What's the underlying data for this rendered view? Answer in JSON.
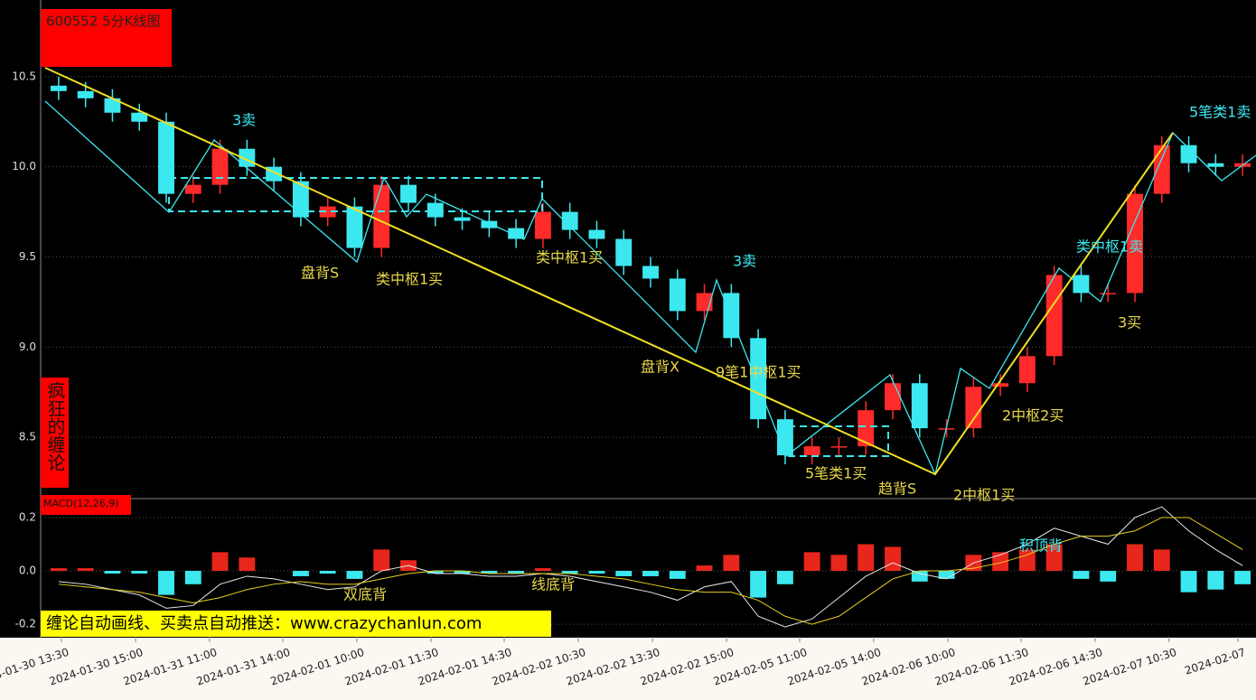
{
  "chart_data": [
    {
      "type": "candlestick",
      "title": "600552 5分K线图",
      "side_label": "疯狂的缠论",
      "banner": "缠论自动画线、买卖点自动推送：www.crazychanlun.com",
      "up_color": "#ff2a2a",
      "down_color": "#3ce8f0",
      "open": [
        10.45,
        10.42,
        10.38,
        10.3,
        10.25,
        9.85,
        9.9,
        10.1,
        10.0,
        9.92,
        9.72,
        9.78,
        9.55,
        9.9,
        9.8,
        9.72,
        9.7,
        9.66,
        9.6,
        9.75,
        9.65,
        9.6,
        9.45,
        9.38,
        9.2,
        9.3,
        9.05,
        8.6,
        8.4,
        8.45,
        8.45,
        8.65,
        8.8,
        8.55,
        8.55,
        8.78,
        8.8,
        8.95,
        9.4,
        9.3,
        9.3,
        9.85,
        10.12,
        10.02,
        10.0
      ],
      "high": [
        10.5,
        10.47,
        10.43,
        10.35,
        10.3,
        9.95,
        10.15,
        10.15,
        10.05,
        9.97,
        9.83,
        9.83,
        9.95,
        9.95,
        9.85,
        9.77,
        9.75,
        9.71,
        9.8,
        9.8,
        9.7,
        9.65,
        9.5,
        9.43,
        9.35,
        9.35,
        9.1,
        8.65,
        8.5,
        8.5,
        8.7,
        8.85,
        8.85,
        8.6,
        8.83,
        8.85,
        9.0,
        9.45,
        9.45,
        9.35,
        9.9,
        10.17,
        10.17,
        10.07,
        10.07
      ],
      "low": [
        10.37,
        10.33,
        10.25,
        10.2,
        9.8,
        9.8,
        9.85,
        9.95,
        9.87,
        9.67,
        9.67,
        9.5,
        9.5,
        9.75,
        9.67,
        9.65,
        9.61,
        9.55,
        9.55,
        9.6,
        9.55,
        9.4,
        9.33,
        9.15,
        9.15,
        9.0,
        8.55,
        8.35,
        8.35,
        8.4,
        8.4,
        8.6,
        8.5,
        8.5,
        8.5,
        8.73,
        8.75,
        8.9,
        9.25,
        9.25,
        9.25,
        9.8,
        9.97,
        9.95,
        9.95
      ],
      "close": [
        10.42,
        10.38,
        10.3,
        10.25,
        9.85,
        9.9,
        10.1,
        10.0,
        9.92,
        9.72,
        9.78,
        9.55,
        9.9,
        9.8,
        9.72,
        9.7,
        9.66,
        9.6,
        9.75,
        9.65,
        9.6,
        9.45,
        9.38,
        9.2,
        9.3,
        9.05,
        8.6,
        8.4,
        8.45,
        8.45,
        8.65,
        8.8,
        8.55,
        8.55,
        8.78,
        8.8,
        8.95,
        9.4,
        9.3,
        9.3,
        9.85,
        10.12,
        10.02,
        10.0,
        10.02
      ],
      "ylim": [
        8.17,
        10.925
      ],
      "yticks": [
        {
          "value": 8.5,
          "label": "8.5"
        },
        {
          "value": 9,
          "label": "9.0"
        },
        9.5,
        {
          "value": 10,
          "label": "10.0"
        },
        10.5
      ],
      "xlim": [
        0,
        45
      ],
      "xticks": [
        {
          "value": 0.6,
          "label": "2024-01-30 13:30"
        },
        {
          "value": 3.36,
          "label": "2024-01-30 15:00"
        },
        {
          "value": 6.11,
          "label": "2024-01-31 11:00"
        },
        {
          "value": 8.83,
          "label": "2024-01-31 14:00"
        },
        {
          "value": 11.58,
          "label": "2024-02-01 10:00"
        },
        {
          "value": 14.34,
          "label": "2024-02-01 11:30"
        },
        {
          "value": 17.06,
          "label": "2024-02-01 14:30"
        },
        {
          "value": 19.81,
          "label": "2024-02-02 10:30"
        },
        {
          "value": 22.57,
          "label": "2024-02-02 13:30"
        },
        {
          "value": 25.32,
          "label": "2024-02-02 15:00"
        },
        {
          "value": 28.04,
          "label": "2024-02-05 11:00"
        },
        {
          "value": 30.79,
          "label": "2024-02-05 14:00"
        },
        {
          "value": 33.55,
          "label": "2024-02-06 10:00"
        },
        {
          "value": 36.27,
          "label": "2024-02-06 11:30"
        },
        {
          "value": 39.02,
          "label": "2024-02-06 14:30"
        },
        {
          "value": 41.77,
          "label": "2024-02-07 10:30"
        },
        {
          "value": 44.33,
          "label": "2024-02-07"
        }
      ],
      "grid": true,
      "annotations": [
        "3卖",
        "盘背S",
        "类中枢1买",
        "类中枢1买",
        "3卖",
        "盘背X",
        "9笔1中枢1买",
        "5笔类1买",
        "趋背S",
        "2中枢1买",
        "2中枢2买",
        "类中枢1卖",
        "3买",
        "5笔类1卖"
      ]
    },
    {
      "type": "macd",
      "title": "MACD(12,26,9)",
      "up_color": "#e8261c",
      "down_color": "#3ce8f0",
      "histogram": [
        0.01,
        0.01,
        -0.01,
        -0.01,
        -0.09,
        -0.05,
        0.07,
        0.05,
        0.0,
        -0.02,
        -0.01,
        -0.03,
        0.08,
        0.04,
        -0.01,
        -0.01,
        -0.01,
        -0.01,
        0.01,
        -0.01,
        -0.01,
        -0.02,
        -0.02,
        -0.03,
        0.02,
        0.06,
        -0.1,
        -0.05,
        0.07,
        0.06,
        0.1,
        0.09,
        -0.04,
        -0.03,
        0.06,
        0.07,
        0.08,
        0.1,
        -0.03,
        -0.04,
        0.1,
        0.08,
        -0.08,
        -0.07,
        -0.05
      ],
      "series": [
        {
          "color": "#e8e8e8",
          "values": [
            -0.04,
            -0.05,
            -0.07,
            -0.09,
            -0.14,
            -0.13,
            -0.05,
            -0.02,
            -0.03,
            -0.05,
            -0.07,
            -0.06,
            0.0,
            0.02,
            -0.01,
            -0.01,
            -0.02,
            -0.02,
            -0.01,
            -0.02,
            -0.04,
            -0.06,
            -0.08,
            -0.11,
            -0.06,
            -0.04,
            -0.17,
            -0.21,
            -0.18,
            -0.1,
            -0.02,
            0.03,
            -0.01,
            -0.03,
            0.03,
            0.06,
            0.1,
            0.16,
            0.13,
            0.1,
            0.2,
            0.24,
            0.15,
            0.08,
            0.02
          ]
        },
        {
          "color": "#e8d020",
          "values": [
            -0.05,
            -0.06,
            -0.07,
            -0.08,
            -0.1,
            -0.12,
            -0.1,
            -0.07,
            -0.05,
            -0.04,
            -0.05,
            -0.05,
            -0.03,
            -0.01,
            0.0,
            0.0,
            -0.01,
            -0.01,
            -0.01,
            -0.01,
            -0.02,
            -0.03,
            -0.05,
            -0.07,
            -0.08,
            -0.08,
            -0.11,
            -0.17,
            -0.2,
            -0.17,
            -0.1,
            -0.03,
            0.0,
            0.0,
            0.01,
            0.03,
            0.06,
            0.1,
            0.13,
            0.13,
            0.15,
            0.2,
            0.2,
            0.14,
            0.08
          ]
        }
      ],
      "ylim": [
        -0.247,
        0.271
      ],
      "yticks": [
        -0.2,
        {
          "value": 0,
          "label": "0.0"
        },
        0.2
      ],
      "grid": true,
      "annotations": [
        "双底背",
        "线底背",
        "积顶背"
      ]
    }
  ]
}
